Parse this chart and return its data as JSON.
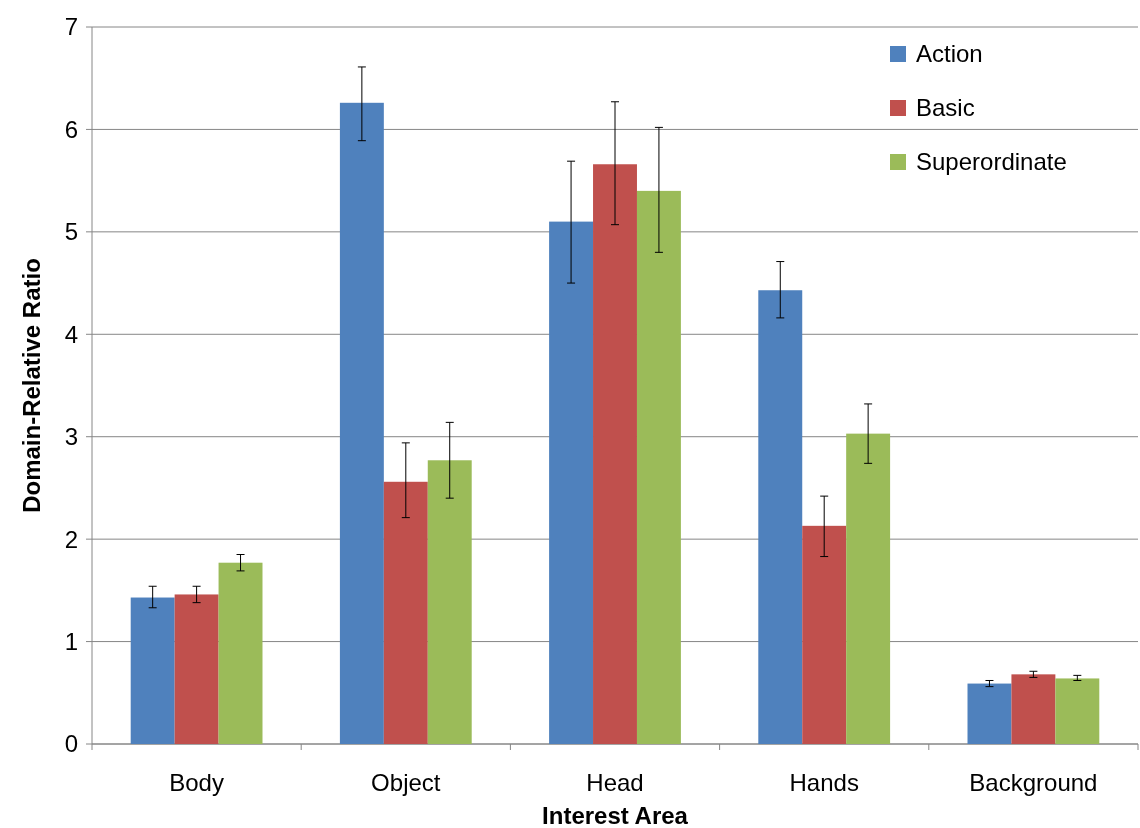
{
  "chart_data": {
    "type": "bar",
    "xlabel": "Interest Area",
    "ylabel": "Domain-Relative Ratio",
    "categories": [
      "Body",
      "Object",
      "Head",
      "Hands",
      "Background"
    ],
    "series": [
      {
        "name": "Action",
        "color": "#4f81bd",
        "values": [
          1.43,
          6.26,
          5.1,
          4.43,
          0.59
        ],
        "errors": [
          [
            1.33,
            1.54
          ],
          [
            5.89,
            6.61
          ],
          [
            4.5,
            5.69
          ],
          [
            4.16,
            4.71
          ],
          [
            0.56,
            0.62
          ]
        ]
      },
      {
        "name": "Basic",
        "color": "#c0504d",
        "values": [
          1.46,
          2.56,
          5.66,
          2.13,
          0.68
        ],
        "errors": [
          [
            1.38,
            1.54
          ],
          [
            2.21,
            2.94
          ],
          [
            5.07,
            6.27
          ],
          [
            1.83,
            2.42
          ],
          [
            0.65,
            0.71
          ]
        ]
      },
      {
        "name": "Superordinate",
        "color": "#9bbb59",
        "values": [
          1.77,
          2.77,
          5.4,
          3.03,
          0.64
        ],
        "errors": [
          [
            1.69,
            1.85
          ],
          [
            2.4,
            3.14
          ],
          [
            4.8,
            6.02
          ],
          [
            2.74,
            3.32
          ],
          [
            0.62,
            0.67
          ]
        ]
      }
    ],
    "ylim": [
      0,
      7
    ],
    "yticks": [
      0,
      1,
      2,
      3,
      4,
      5,
      6,
      7
    ],
    "grid": "y",
    "legend": "top right"
  }
}
